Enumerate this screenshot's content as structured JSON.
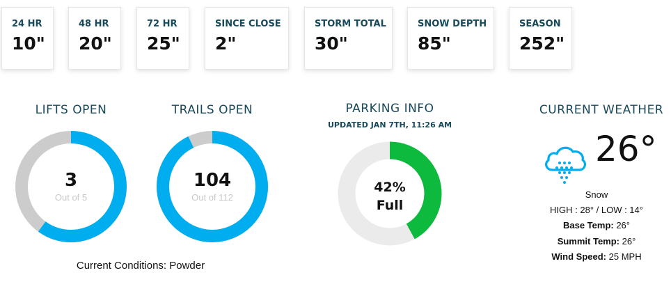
{
  "stats": [
    {
      "label": "24 HR",
      "value": "10\""
    },
    {
      "label": "48 HR",
      "value": "20\""
    },
    {
      "label": "72 HR",
      "value": "25\""
    },
    {
      "label": "SINCE CLOSE",
      "value": "2\""
    },
    {
      "label": "STORM TOTAL",
      "value": "30\""
    },
    {
      "label": "SNOW DEPTH",
      "value": "85\""
    },
    {
      "label": "SEASON",
      "value": "252\""
    }
  ],
  "lifts": {
    "title": "LIFTS OPEN",
    "open": "3",
    "total_text": "Out of 5",
    "open_count": 3,
    "total_count": 5
  },
  "trails": {
    "title": "TRAILS OPEN",
    "open": "104",
    "total_text": "Out of 112",
    "open_count": 104,
    "total_count": 112
  },
  "parking": {
    "title": "PARKING INFO",
    "updated": "UPDATED JAN 7TH, 11:26 AM",
    "percent_text": "42%",
    "status": "Full",
    "percent": 42
  },
  "conditions": {
    "text": "Current Conditions: Powder"
  },
  "weather": {
    "title": "CURRENT WEATHER",
    "icon": "snow-cloud-icon",
    "temp": "26°",
    "description": "Snow",
    "high_low": "HIGH : 28° / LOW : 14°",
    "base_label": "Base Temp:",
    "base_value": " 26°",
    "summit_label": "Summit Temp:",
    "summit_value": " 26°",
    "wind_label": "Wind Speed:",
    "wind_value": " 25 MPH"
  },
  "colors": {
    "accent": "#00aeef",
    "track": "#cccccc",
    "parking": "#0dba3e",
    "parking_track": "#ebebeb",
    "heading": "#18495a"
  }
}
